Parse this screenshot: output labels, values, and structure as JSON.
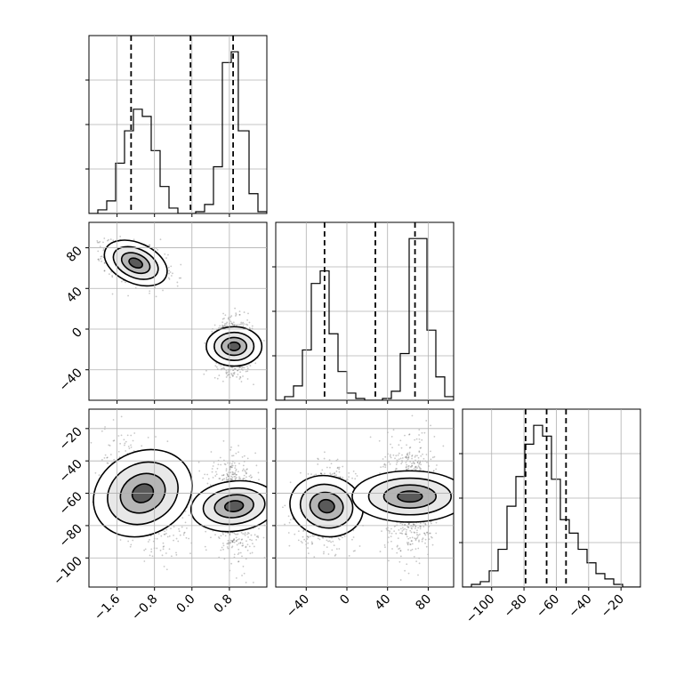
{
  "chart_data": {
    "type": "corner",
    "title": "",
    "grid": true,
    "parameters": [
      {
        "label": "",
        "range": [
          -2.2,
          1.6
        ],
        "ticks": [
          -1.6,
          -0.8,
          0.0,
          0.8
        ],
        "tick_labels": [
          "−1.6",
          "−0.8",
          "0.0",
          "0.8"
        ],
        "quantiles": [
          -1.3,
          -0.03,
          0.88
        ]
      },
      {
        "label": "",
        "range": [
          -70,
          105
        ],
        "ticks": [
          -40,
          0,
          40,
          80
        ],
        "tick_labels": [
          "−40",
          "0",
          "40",
          "80"
        ],
        "quantiles": [
          -22,
          28,
          67
        ]
      },
      {
        "label": "",
        "range": [
          -118,
          -8
        ],
        "ticks": [
          -100,
          -80,
          -60,
          -40,
          -20
        ],
        "tick_labels": [
          "−100",
          "−80",
          "−60",
          "−40",
          "−20"
        ],
        "quantiles": [
          -79,
          -66,
          -54
        ]
      }
    ],
    "histograms": [
      {
        "param": 0,
        "bin_edges": [
          -2.2,
          -2.01,
          -1.82,
          -1.63,
          -1.44,
          -1.25,
          -1.06,
          -0.87,
          -0.68,
          -0.49,
          -0.3,
          -0.11,
          0.08,
          0.27,
          0.46,
          0.65,
          0.84,
          0.99,
          1.22,
          1.41,
          1.6
        ],
        "counts": [
          0,
          2,
          7,
          28,
          46,
          58,
          54,
          35,
          15,
          3,
          0,
          0,
          1,
          5,
          26,
          84,
          90,
          46,
          11,
          1
        ]
      },
      {
        "param": 1,
        "bin_edges": [
          -70,
          -61.25,
          -52.5,
          -43.75,
          -35,
          -26.25,
          -17.5,
          -8.75,
          0,
          8.75,
          17.5,
          26.25,
          35,
          43.75,
          52.5,
          61.25,
          70,
          78.75,
          87.5,
          96.25,
          105
        ],
        "counts": [
          0,
          2,
          8,
          28,
          65,
          72,
          37,
          16,
          4,
          1,
          0,
          0,
          1,
          5,
          26,
          90,
          90,
          39,
          13,
          2
        ]
      },
      {
        "param": 2,
        "bin_edges": [
          -118,
          -112.5,
          -107,
          -101.5,
          -96,
          -90.5,
          -85,
          -79.5,
          -74,
          -68.5,
          -63,
          -57.5,
          -52,
          -46.5,
          -41,
          -35.5,
          -30,
          -24.5,
          -19,
          -13.5,
          -8
        ],
        "counts": [
          0,
          1,
          2,
          6,
          14,
          30,
          41,
          53,
          60,
          56,
          40,
          25,
          20,
          14,
          9,
          5,
          3,
          1,
          0,
          0
        ]
      }
    ],
    "joint_2d": [
      {
        "x_param": 0,
        "y_param": 1,
        "modes": [
          {
            "center": [
              -1.2,
              65
            ],
            "sigma": [
              0.32,
              10
            ],
            "corr": -0.45,
            "weight": 0.5
          },
          {
            "center": [
              0.9,
              -17
            ],
            "sigma": [
              0.2,
              13
            ],
            "corr": 0.0,
            "weight": 0.5
          }
        ]
      },
      {
        "x_param": 0,
        "y_param": 2,
        "modes": [
          {
            "center": [
              -1.05,
              -60
            ],
            "sigma": [
              0.4,
              16
            ],
            "corr": -0.45,
            "weight": 0.5
          },
          {
            "center": [
              0.9,
              -68
            ],
            "sigma": [
              0.25,
              13
            ],
            "corr": -0.15,
            "weight": 0.5
          }
        ]
      },
      {
        "x_param": 1,
        "y_param": 2,
        "modes": [
          {
            "center": [
              -20,
              -68
            ],
            "sigma": [
              14,
              11
            ],
            "corr": 0.1,
            "weight": 0.5
          },
          {
            "center": [
              62,
              -62
            ],
            "sigma": [
              12,
              17
            ],
            "corr": 0.0,
            "weight": 0.5
          }
        ]
      }
    ]
  },
  "colors": {
    "line": "#000000",
    "grid": "#b0b0b0",
    "background": "#ffffff"
  }
}
